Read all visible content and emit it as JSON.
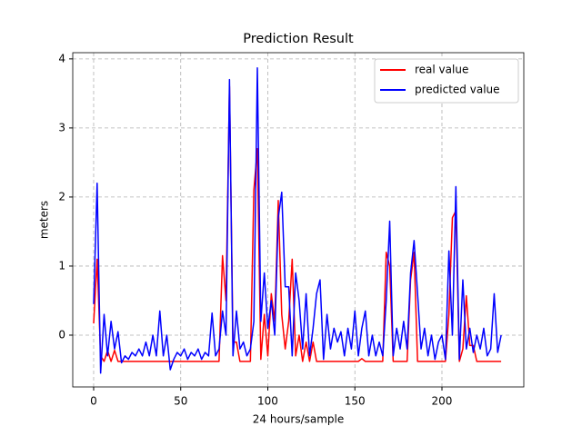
{
  "chart_data": {
    "type": "line",
    "title": "Prediction Result",
    "xlabel": "24 hours/sample",
    "ylabel": "meters",
    "x": [
      0,
      2,
      4,
      6,
      8,
      10,
      12,
      14,
      16,
      18,
      20,
      22,
      24,
      26,
      28,
      30,
      32,
      34,
      36,
      38,
      40,
      42,
      44,
      46,
      48,
      50,
      52,
      54,
      56,
      58,
      60,
      62,
      64,
      66,
      68,
      70,
      72,
      74,
      76,
      78,
      80,
      82,
      84,
      86,
      88,
      90,
      92,
      94,
      96,
      98,
      100,
      102,
      104,
      106,
      108,
      110,
      112,
      114,
      116,
      118,
      120,
      122,
      124,
      126,
      128,
      130,
      132,
      134,
      136,
      138,
      140,
      142,
      144,
      146,
      148,
      150,
      152,
      154,
      156,
      158,
      160,
      162,
      164,
      166,
      168,
      170,
      172,
      174,
      176,
      178,
      180,
      182,
      184,
      186,
      188,
      190,
      192,
      194,
      196,
      198,
      200,
      202,
      204,
      206,
      208,
      210,
      212,
      214,
      216,
      218,
      220,
      222,
      224,
      226,
      228,
      230,
      232,
      234
    ],
    "series": [
      {
        "name": "real value",
        "color": "#ff0000",
        "values": [
          0.17,
          1.1,
          -0.3,
          -0.38,
          -0.22,
          -0.38,
          -0.22,
          -0.38,
          -0.38,
          -0.38,
          -0.38,
          -0.38,
          -0.38,
          -0.38,
          -0.38,
          -0.38,
          -0.38,
          -0.38,
          -0.38,
          -0.38,
          -0.38,
          -0.38,
          -0.38,
          -0.38,
          -0.38,
          -0.38,
          -0.38,
          -0.38,
          -0.38,
          -0.38,
          -0.38,
          -0.38,
          -0.38,
          -0.38,
          -0.38,
          -0.38,
          -0.38,
          1.15,
          0.5,
          3.6,
          -0.1,
          -0.1,
          -0.38,
          -0.38,
          -0.38,
          -0.38,
          2.1,
          2.7,
          -0.35,
          0.3,
          -0.3,
          0.6,
          0.2,
          1.95,
          0.3,
          -0.2,
          0.2,
          1.1,
          -0.3,
          0,
          -0.38,
          -0.1,
          -0.38,
          -0.1,
          -0.38,
          -0.38,
          -0.38,
          -0.38,
          -0.38,
          -0.38,
          -0.38,
          -0.38,
          -0.38,
          -0.38,
          -0.38,
          -0.38,
          -0.38,
          -0.34,
          -0.38,
          -0.38,
          -0.38,
          -0.38,
          -0.38,
          -0.38,
          1.2,
          1.0,
          -0.38,
          -0.38,
          -0.38,
          -0.38,
          -0.38,
          0.8,
          1.2,
          -0.38,
          -0.38,
          -0.38,
          -0.38,
          -0.38,
          -0.38,
          -0.38,
          -0.38,
          -0.38,
          0.3,
          1.7,
          1.8,
          -0.38,
          -0.2,
          0.57,
          -0.15,
          -0.15,
          -0.38,
          -0.38,
          -0.38,
          -0.38,
          -0.38,
          -0.38,
          -0.38,
          -0.38
        ]
      },
      {
        "name": "predicted value",
        "color": "#0000ff",
        "values": [
          0.45,
          2.2,
          -0.55,
          0.3,
          -0.3,
          0.2,
          -0.2,
          0.05,
          -0.4,
          -0.3,
          -0.35,
          -0.25,
          -0.3,
          -0.2,
          -0.3,
          -0.1,
          -0.3,
          0.0,
          -0.3,
          0.35,
          -0.3,
          0.0,
          -0.5,
          -0.35,
          -0.25,
          -0.3,
          -0.2,
          -0.35,
          -0.25,
          -0.3,
          -0.2,
          -0.35,
          -0.25,
          -0.3,
          0.32,
          -0.3,
          -0.2,
          0.35,
          0.0,
          3.7,
          -0.3,
          0.35,
          -0.2,
          -0.1,
          -0.3,
          -0.2,
          0.2,
          3.87,
          0.2,
          0.9,
          0.1,
          0.5,
          0.0,
          1.7,
          2.07,
          0.7,
          0.7,
          -0.3,
          0.9,
          0.5,
          -0.2,
          0.6,
          -0.3,
          0.1,
          0.6,
          0.8,
          -0.35,
          0.3,
          -0.2,
          0.1,
          -0.1,
          0.05,
          -0.3,
          0.1,
          -0.2,
          0.35,
          -0.3,
          0.1,
          0.35,
          -0.3,
          0.0,
          -0.3,
          -0.1,
          -0.3,
          0.5,
          1.65,
          -0.3,
          0.1,
          -0.2,
          0.2,
          -0.2,
          0.9,
          1.37,
          0.6,
          -0.2,
          0.1,
          -0.3,
          0.0,
          -0.35,
          -0.1,
          0.0,
          -0.35,
          1.22,
          0.0,
          2.15,
          -0.35,
          0.8,
          -0.2,
          0.1,
          -0.25,
          0.0,
          -0.2,
          0.1,
          -0.3,
          -0.2,
          0.6,
          -0.25,
          0.0
        ]
      }
    ],
    "xlim": [
      -12,
      247
    ],
    "ylim": [
      -0.75,
      4.09
    ],
    "xticks": [
      0,
      50,
      100,
      150,
      200
    ],
    "yticks": [
      0,
      1,
      2,
      3,
      4
    ],
    "grid": true,
    "legend": "upper right"
  }
}
